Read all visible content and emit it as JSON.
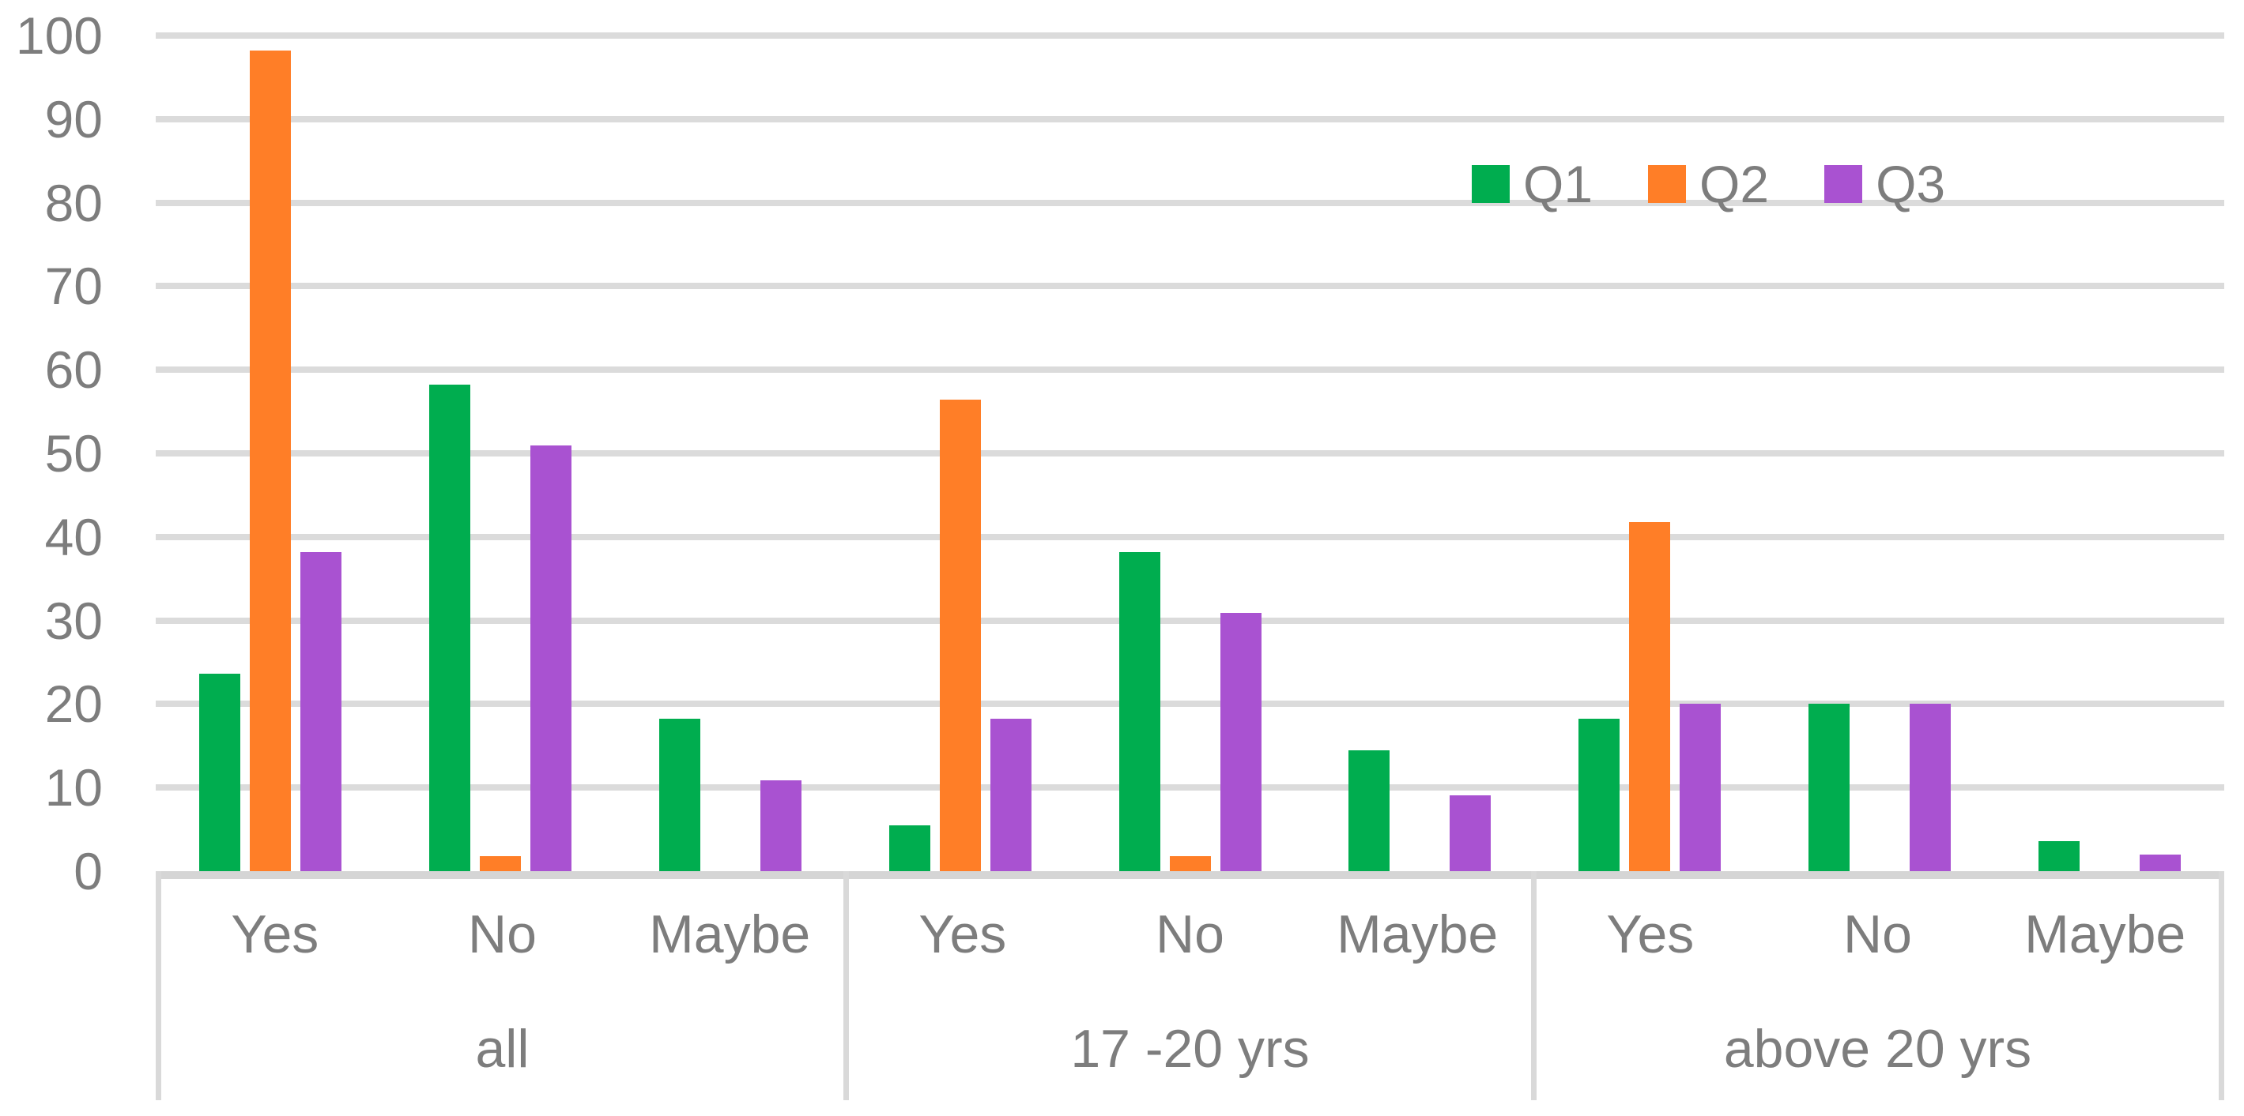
{
  "chart_data": {
    "type": "bar",
    "title": "",
    "groups": [
      "all",
      "17 -20 yrs",
      "above 20 yrs"
    ],
    "categories": [
      "Yes",
      "No",
      "Maybe"
    ],
    "series": [
      {
        "name": "Q1",
        "color": "#00ad4f",
        "values_by_group": [
          [
            23.6,
            58.2,
            18.2
          ],
          [
            5.5,
            38.2,
            14.5
          ],
          [
            18.2,
            20,
            3.6
          ]
        ]
      },
      {
        "name": "Q2",
        "color": "#ff7e27",
        "values_by_group": [
          [
            98.2,
            1.8,
            0
          ],
          [
            56.4,
            1.8,
            0
          ],
          [
            41.8,
            0,
            0
          ]
        ]
      },
      {
        "name": "Q3",
        "color": "#a952d1",
        "values_by_group": [
          [
            38.2,
            50.9,
            10.9
          ],
          [
            18.2,
            30.9,
            9.1
          ],
          [
            20,
            20,
            2
          ]
        ]
      }
    ],
    "xlabel": "",
    "ylabel": "",
    "ylim": [
      0,
      100
    ],
    "ytick_step": 10,
    "grid": "horizontal-only",
    "legend_position": "top-right"
  },
  "yaxis": {
    "ticks": [
      "0",
      "10",
      "20",
      "30",
      "40",
      "50",
      "60",
      "70",
      "80",
      "90",
      "100"
    ]
  },
  "xaxis": {
    "groups": [
      {
        "label": "all",
        "categories": [
          "Yes",
          "No",
          "Maybe"
        ]
      },
      {
        "label": "17 -20 yrs",
        "categories": [
          "Yes",
          "No",
          "Maybe"
        ]
      },
      {
        "label": "above 20 yrs",
        "categories": [
          "Yes",
          "No",
          "Maybe"
        ]
      }
    ]
  },
  "legend": {
    "items": [
      {
        "label": "Q1",
        "color": "#00ad4f"
      },
      {
        "label": "Q2",
        "color": "#ff7e27"
      },
      {
        "label": "Q3",
        "color": "#a952d1"
      }
    ]
  },
  "colors": {
    "q1_green": "#00ad4f",
    "q2_orange": "#ff7e27",
    "q3_purple": "#a952d1",
    "gridline": "#dbdbdb",
    "axis_line": "#d5d5d5",
    "table_border": "#d9d9d9",
    "text_gray": "#7d7d7d",
    "background": "#ffffff"
  }
}
